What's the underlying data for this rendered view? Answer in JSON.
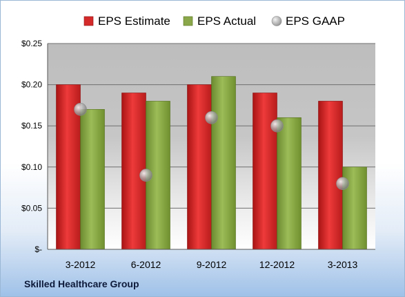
{
  "footer": {
    "company": "Skilled Healthcare Group"
  },
  "colors": {
    "estimate": "#d42a2a",
    "actual": "#8aa84a",
    "gaap": "#b8b8b8"
  },
  "chart_data": {
    "type": "bar",
    "categories": [
      "3-2012",
      "6-2012",
      "9-2012",
      "12-2012",
      "3-2013"
    ],
    "series": [
      {
        "name": "EPS Estimate",
        "kind": "bar",
        "values": [
          0.2,
          0.19,
          0.2,
          0.19,
          0.18
        ]
      },
      {
        "name": "EPS Actual",
        "kind": "bar",
        "values": [
          0.17,
          0.18,
          0.21,
          0.16,
          0.1
        ]
      },
      {
        "name": "EPS GAAP",
        "kind": "marker",
        "values": [
          0.17,
          0.09,
          0.16,
          0.15,
          0.08
        ]
      }
    ],
    "yticks": [
      "$-",
      "$0.05",
      "$0.10",
      "$0.15",
      "$0.20",
      "$0.25"
    ],
    "ylim": [
      0,
      0.25
    ],
    "grid": true,
    "legend": "top"
  }
}
